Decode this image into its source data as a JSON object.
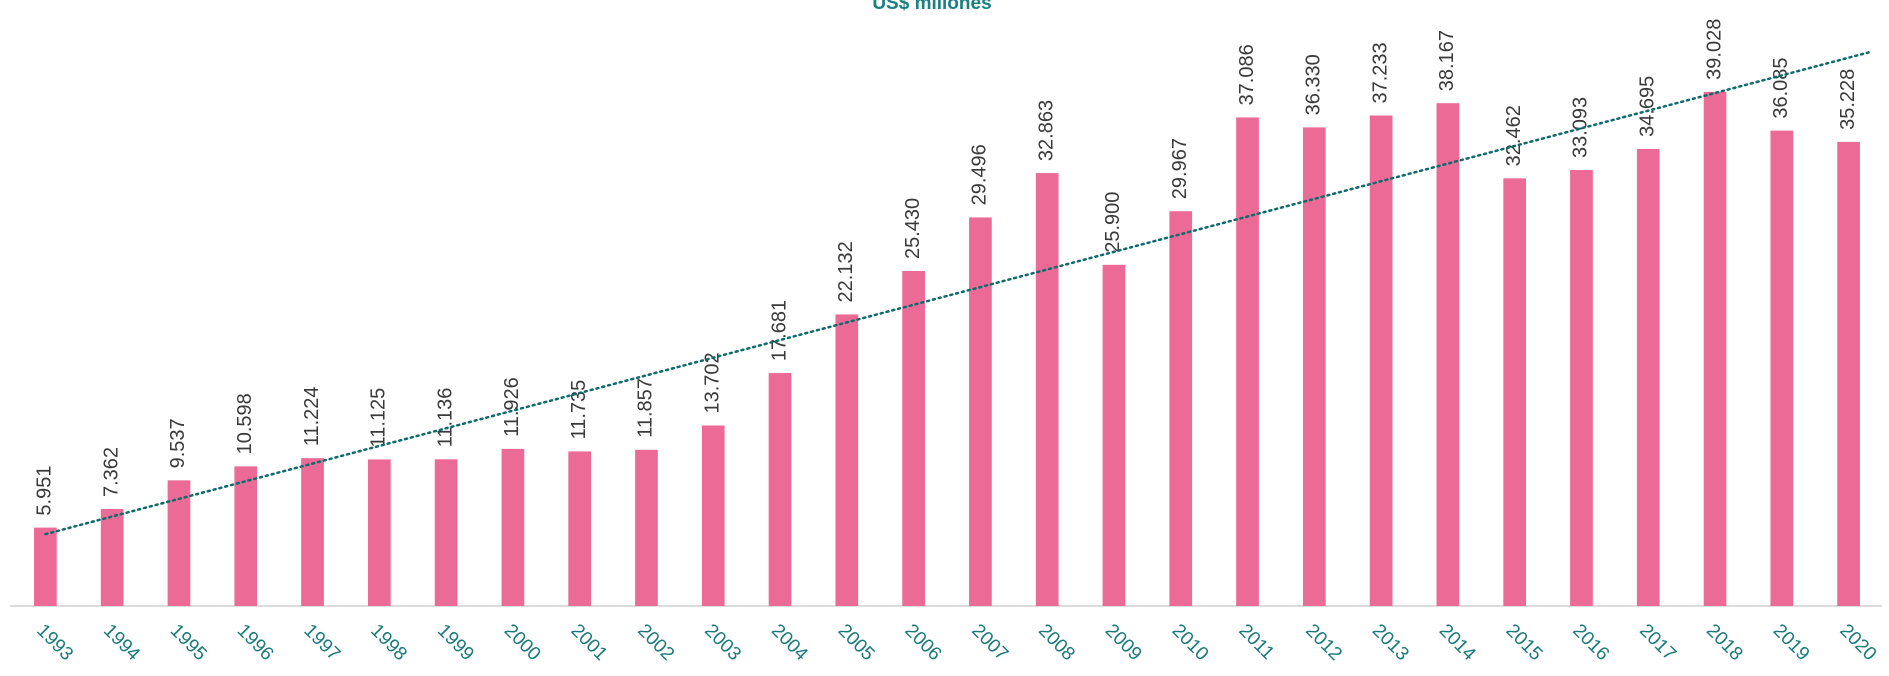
{
  "chart_data": {
    "type": "bar",
    "title": "US$ millones",
    "categories": [
      "1993",
      "1994",
      "1995",
      "1996",
      "1997",
      "1998",
      "1999",
      "2000",
      "2001",
      "2002",
      "2003",
      "2004",
      "2005",
      "2006",
      "2007",
      "2008",
      "2009",
      "2010",
      "2011",
      "2012",
      "2013",
      "2014",
      "2015",
      "2016",
      "2017",
      "2018",
      "2019",
      "2020"
    ],
    "values": [
      5951,
      7362,
      9537,
      10598,
      11224,
      11125,
      11136,
      11926,
      11735,
      11857,
      13702,
      17681,
      22132,
      25430,
      29496,
      32863,
      25900,
      29967,
      37086,
      36330,
      37233,
      38167,
      32462,
      33093,
      34695,
      39028,
      36085,
      35228
    ],
    "value_labels": [
      "5.951",
      "7.362",
      "9.537",
      "10.598",
      "11.224",
      "11.125",
      "11.136",
      "11.926",
      "11.735",
      "11.857",
      "13.702",
      "17.681",
      "22.132",
      "25.430",
      "29.496",
      "32.863",
      "25.900",
      "29.967",
      "37.086",
      "36.330",
      "37.233",
      "38.167",
      "32.462",
      "33.093",
      "34.695",
      "39.028",
      "36.085",
      "35.228"
    ],
    "color": "#ec6a96",
    "trendline": true,
    "trendline_color": "#0f6b6b",
    "ylim": [
      0,
      46000
    ]
  }
}
